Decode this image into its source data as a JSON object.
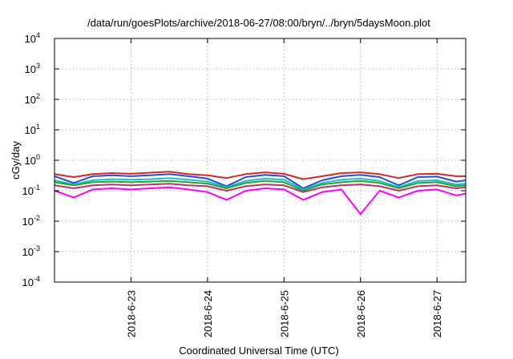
{
  "chart_data": {
    "type": "line",
    "title": "/data/run/goesPlots/archive/2018-06-27/08:00/bryn/../bryn/5daysMoon.plot",
    "xlabel": "Coordinated Universal Time (UTC)",
    "ylabel": "cGy/day",
    "yscale": "log",
    "ylim": [
      0.0001,
      10000
    ],
    "xlim": [
      "2018-06-22 00:00",
      "2018-06-27 09:00"
    ],
    "grid": true,
    "legend": "none",
    "y_ticks": [
      {
        "base": "10",
        "exp": "-4",
        "value": 0.0001
      },
      {
        "base": "10",
        "exp": "-3",
        "value": 0.001
      },
      {
        "base": "10",
        "exp": "-2",
        "value": 0.01
      },
      {
        "base": "10",
        "exp": "-1",
        "value": 0.1
      },
      {
        "base": "10",
        "exp": "0",
        "value": 1
      },
      {
        "base": "10",
        "exp": "1",
        "value": 10
      },
      {
        "base": "10",
        "exp": "2",
        "value": 100
      },
      {
        "base": "10",
        "exp": "3",
        "value": 1000
      },
      {
        "base": "10",
        "exp": "4",
        "value": 10000
      }
    ],
    "x_ticks": [
      "2018-6-23",
      "2018-6-24",
      "2018-6-25",
      "2018-6-26",
      "2018-6-27"
    ],
    "x_tick_values": [
      "2018-06-23 00:00",
      "2018-06-24 00:00",
      "2018-06-25 00:00",
      "2018-06-26 00:00",
      "2018-06-27 00:00"
    ],
    "series": [
      {
        "color": "#d62728",
        "x": [
          "2018-06-22 00:00",
          "2018-06-22 06:00",
          "2018-06-22 12:00",
          "2018-06-22 18:00",
          "2018-06-23 00:00",
          "2018-06-23 06:00",
          "2018-06-23 12:00",
          "2018-06-23 18:00",
          "2018-06-24 00:00",
          "2018-06-24 06:00",
          "2018-06-24 12:00",
          "2018-06-24 18:00",
          "2018-06-25 00:00",
          "2018-06-25 06:00",
          "2018-06-25 12:00",
          "2018-06-25 18:00",
          "2018-06-26 00:00",
          "2018-06-26 06:00",
          "2018-06-26 12:00",
          "2018-06-26 18:00",
          "2018-06-27 00:00",
          "2018-06-27 06:00",
          "2018-06-27 09:00"
        ],
        "values": [
          0.35,
          0.28,
          0.35,
          0.38,
          0.36,
          0.39,
          0.42,
          0.35,
          0.32,
          0.26,
          0.35,
          0.4,
          0.36,
          0.24,
          0.3,
          0.38,
          0.4,
          0.35,
          0.26,
          0.35,
          0.36,
          0.3,
          0.3
        ]
      },
      {
        "color": "#1f4fd8",
        "x": [
          "2018-06-22 00:00",
          "2018-06-22 06:00",
          "2018-06-22 12:00",
          "2018-06-22 18:00",
          "2018-06-23 00:00",
          "2018-06-23 06:00",
          "2018-06-23 12:00",
          "2018-06-23 18:00",
          "2018-06-24 00:00",
          "2018-06-24 06:00",
          "2018-06-24 12:00",
          "2018-06-24 18:00",
          "2018-06-25 00:00",
          "2018-06-25 06:00",
          "2018-06-25 12:00",
          "2018-06-25 18:00",
          "2018-06-26 00:00",
          "2018-06-26 06:00",
          "2018-06-26 12:00",
          "2018-06-26 18:00",
          "2018-06-27 00:00",
          "2018-06-27 06:00",
          "2018-06-27 09:00"
        ],
        "values": [
          0.3,
          0.18,
          0.3,
          0.32,
          0.3,
          0.32,
          0.35,
          0.3,
          0.25,
          0.14,
          0.28,
          0.33,
          0.3,
          0.12,
          0.22,
          0.3,
          0.33,
          0.28,
          0.15,
          0.28,
          0.29,
          0.2,
          0.22
        ]
      },
      {
        "color": "#17becf",
        "x": [
          "2018-06-22 00:00",
          "2018-06-22 06:00",
          "2018-06-22 12:00",
          "2018-06-22 18:00",
          "2018-06-23 00:00",
          "2018-06-23 06:00",
          "2018-06-23 12:00",
          "2018-06-23 18:00",
          "2018-06-24 00:00",
          "2018-06-24 06:00",
          "2018-06-24 12:00",
          "2018-06-24 18:00",
          "2018-06-25 00:00",
          "2018-06-25 06:00",
          "2018-06-25 12:00",
          "2018-06-25 18:00",
          "2018-06-26 00:00",
          "2018-06-26 06:00",
          "2018-06-26 12:00",
          "2018-06-26 18:00",
          "2018-06-27 00:00",
          "2018-06-27 06:00",
          "2018-06-27 09:00"
        ],
        "values": [
          0.22,
          0.16,
          0.22,
          0.24,
          0.23,
          0.24,
          0.26,
          0.23,
          0.2,
          0.13,
          0.21,
          0.25,
          0.23,
          0.11,
          0.18,
          0.23,
          0.25,
          0.21,
          0.13,
          0.21,
          0.22,
          0.16,
          0.17
        ]
      },
      {
        "color": "#2ca02c",
        "x": [
          "2018-06-22 00:00",
          "2018-06-22 06:00",
          "2018-06-22 12:00",
          "2018-06-22 18:00",
          "2018-06-23 00:00",
          "2018-06-23 06:00",
          "2018-06-23 12:00",
          "2018-06-23 18:00",
          "2018-06-24 00:00",
          "2018-06-24 06:00",
          "2018-06-24 12:00",
          "2018-06-24 18:00",
          "2018-06-25 00:00",
          "2018-06-25 06:00",
          "2018-06-25 12:00",
          "2018-06-25 18:00",
          "2018-06-26 00:00",
          "2018-06-26 06:00",
          "2018-06-26 12:00",
          "2018-06-26 18:00",
          "2018-06-27 00:00",
          "2018-06-27 06:00",
          "2018-06-27 09:00"
        ],
        "values": [
          0.19,
          0.15,
          0.19,
          0.2,
          0.19,
          0.2,
          0.21,
          0.19,
          0.17,
          0.12,
          0.18,
          0.21,
          0.19,
          0.1,
          0.16,
          0.19,
          0.21,
          0.18,
          0.12,
          0.18,
          0.19,
          0.14,
          0.15
        ]
      },
      {
        "color": "#b8326e",
        "x": [
          "2018-06-22 00:00",
          "2018-06-22 06:00",
          "2018-06-22 12:00",
          "2018-06-22 18:00",
          "2018-06-23 00:00",
          "2018-06-23 06:00",
          "2018-06-23 12:00",
          "2018-06-23 18:00",
          "2018-06-24 00:00",
          "2018-06-24 06:00",
          "2018-06-24 12:00",
          "2018-06-24 18:00",
          "2018-06-25 00:00",
          "2018-06-25 06:00",
          "2018-06-25 12:00",
          "2018-06-25 18:00",
          "2018-06-26 00:00",
          "2018-06-26 06:00",
          "2018-06-26 12:00",
          "2018-06-26 18:00",
          "2018-06-27 00:00",
          "2018-06-27 06:00",
          "2018-06-27 09:00"
        ],
        "values": [
          0.15,
          0.12,
          0.15,
          0.16,
          0.15,
          0.16,
          0.17,
          0.15,
          0.14,
          0.1,
          0.14,
          0.16,
          0.15,
          0.09,
          0.13,
          0.15,
          0.16,
          0.14,
          0.1,
          0.14,
          0.15,
          0.12,
          0.13
        ]
      },
      {
        "color": "#ff00ff",
        "x": [
          "2018-06-22 00:00",
          "2018-06-22 06:00",
          "2018-06-22 12:00",
          "2018-06-22 18:00",
          "2018-06-23 00:00",
          "2018-06-23 06:00",
          "2018-06-23 12:00",
          "2018-06-23 18:00",
          "2018-06-24 00:00",
          "2018-06-24 06:00",
          "2018-06-24 12:00",
          "2018-06-24 18:00",
          "2018-06-25 00:00",
          "2018-06-25 06:00",
          "2018-06-25 12:00",
          "2018-06-25 18:00",
          "2018-06-26 00:00",
          "2018-06-26 06:00",
          "2018-06-26 12:00",
          "2018-06-26 18:00",
          "2018-06-27 00:00",
          "2018-06-27 06:00",
          "2018-06-27 09:00"
        ],
        "values": [
          0.1,
          0.06,
          0.11,
          0.12,
          0.11,
          0.12,
          0.13,
          0.11,
          0.09,
          0.05,
          0.1,
          0.12,
          0.11,
          0.05,
          0.09,
          0.11,
          0.017,
          0.1,
          0.06,
          0.1,
          0.11,
          0.07,
          0.08
        ]
      }
    ]
  }
}
